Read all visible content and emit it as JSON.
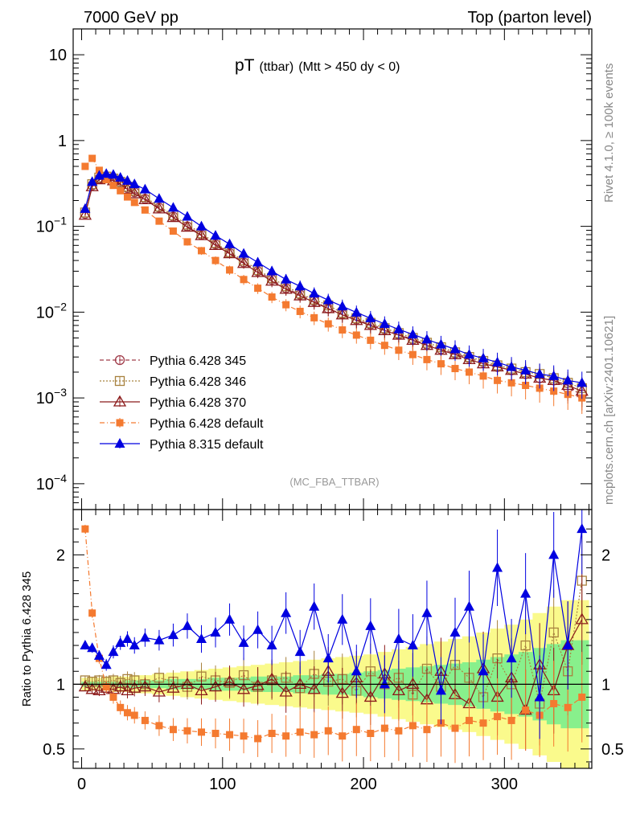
{
  "header": {
    "left": "7000 GeV pp",
    "right": "Top (parton level)"
  },
  "side_labels": {
    "rivet": "Rivet 4.1.0, ≥ 100k events",
    "mcplots": "mcplots.cern.ch [arXiv:2401.10621]"
  },
  "plot_title": {
    "main": "pT",
    "sub1": "(ttbar)",
    "sub2": "(Mtt > 450 dy < 0)"
  },
  "analysis_id": "(MC_FBA_TTBAR)",
  "chart_data": [
    {
      "type": "line",
      "panel": "main",
      "scale": "log",
      "ylim": [
        5e-05,
        20
      ],
      "xlim": [
        -6,
        362
      ],
      "yticks": [
        {
          "value": 10,
          "base": "10",
          "exp": ""
        },
        {
          "value": 1,
          "base": "1",
          "exp": ""
        },
        {
          "value": 0.1,
          "base": "10",
          "exp": "−1"
        },
        {
          "value": 0.01,
          "base": "10",
          "exp": "−2"
        },
        {
          "value": 0.001,
          "base": "10",
          "exp": "−3"
        },
        {
          "value": 0.0001,
          "base": "10",
          "exp": "−4"
        }
      ],
      "x": [
        2.5,
        7.5,
        12.5,
        17.5,
        22.5,
        27.5,
        32.5,
        37.5,
        45,
        55,
        65,
        75,
        85,
        95,
        105,
        115,
        125,
        135,
        145,
        155,
        165,
        175,
        185,
        195,
        205,
        215,
        225,
        235,
        245,
        255,
        265,
        275,
        285,
        295,
        305,
        315,
        325,
        335,
        345,
        355
      ],
      "series": [
        {
          "name": "Pythia 6.428 345",
          "color": "#a13d4b",
          "marker": "open-circle",
          "dash": "5,3",
          "values": [
            0.14,
            0.3,
            0.36,
            0.37,
            0.35,
            0.32,
            0.28,
            0.25,
            0.21,
            0.165,
            0.13,
            0.1,
            0.08,
            0.062,
            0.049,
            0.038,
            0.03,
            0.024,
            0.019,
            0.016,
            0.0135,
            0.011,
            0.0095,
            0.0082,
            0.0072,
            0.0063,
            0.0055,
            0.0048,
            0.0042,
            0.0037,
            0.0033,
            0.0029,
            0.0026,
            0.0023,
            0.0021,
            0.0019,
            0.0017,
            0.0016,
            0.0013,
            0.0011
          ]
        },
        {
          "name": "Pythia 6.428 346",
          "color": "#a8823f",
          "marker": "open-square",
          "dash": "2,2",
          "values": [
            0.145,
            0.31,
            0.37,
            0.38,
            0.36,
            0.33,
            0.29,
            0.26,
            0.22,
            0.17,
            0.135,
            0.105,
            0.083,
            0.064,
            0.05,
            0.04,
            0.031,
            0.025,
            0.02,
            0.0165,
            0.014,
            0.012,
            0.0098,
            0.0085,
            0.0075,
            0.0065,
            0.0057,
            0.005,
            0.0044,
            0.0039,
            0.0034,
            0.003,
            0.0027,
            0.0024,
            0.0022,
            0.002,
            0.0019,
            0.0017,
            0.0015,
            0.0013
          ]
        },
        {
          "name": "Pythia 6.428 370",
          "color": "#8b1a1a",
          "marker": "open-triangle",
          "dash": "",
          "values": [
            0.135,
            0.29,
            0.35,
            0.36,
            0.34,
            0.31,
            0.27,
            0.24,
            0.205,
            0.16,
            0.127,
            0.098,
            0.078,
            0.06,
            0.048,
            0.037,
            0.029,
            0.023,
            0.0185,
            0.0155,
            0.013,
            0.011,
            0.0093,
            0.008,
            0.007,
            0.0061,
            0.0054,
            0.0047,
            0.0041,
            0.0036,
            0.0032,
            0.0028,
            0.0025,
            0.0023,
            0.0021,
            0.0019,
            0.0017,
            0.0016,
            0.0014,
            0.0012
          ]
        },
        {
          "name": "Pythia 6.428 default",
          "color": "#f47a30",
          "marker": "filled-square",
          "dash": "6,3,1,3",
          "values": [
            0.5,
            0.62,
            0.45,
            0.35,
            0.3,
            0.26,
            0.22,
            0.19,
            0.155,
            0.115,
            0.088,
            0.066,
            0.052,
            0.04,
            0.031,
            0.024,
            0.019,
            0.015,
            0.0122,
            0.0102,
            0.0086,
            0.0073,
            0.0062,
            0.0054,
            0.0047,
            0.0041,
            0.0036,
            0.0032,
            0.0028,
            0.0025,
            0.0022,
            0.002,
            0.0018,
            0.0016,
            0.0015,
            0.0014,
            0.0013,
            0.0012,
            0.0011,
            0.001
          ]
        },
        {
          "name": "Pythia 8.315 default",
          "color": "#0000e0",
          "marker": "filled-triangle",
          "dash": "",
          "values": [
            0.16,
            0.33,
            0.39,
            0.41,
            0.4,
            0.37,
            0.34,
            0.31,
            0.27,
            0.21,
            0.165,
            0.13,
            0.1,
            0.078,
            0.062,
            0.048,
            0.038,
            0.03,
            0.024,
            0.02,
            0.0165,
            0.0138,
            0.0117,
            0.0099,
            0.0085,
            0.0073,
            0.0063,
            0.0055,
            0.0048,
            0.0042,
            0.0037,
            0.0032,
            0.0029,
            0.0026,
            0.0023,
            0.0021,
            0.0019,
            0.0018,
            0.0016,
            0.0015
          ]
        }
      ]
    },
    {
      "type": "line",
      "panel": "ratio",
      "ylabel": "Ratio to Pythia 6.428 345",
      "ylim": [
        0.35,
        2.35
      ],
      "yticks": [
        0.5,
        1,
        2
      ],
      "xticks": [
        0,
        100,
        200,
        300
      ],
      "x": [
        2.5,
        7.5,
        12.5,
        17.5,
        22.5,
        27.5,
        32.5,
        37.5,
        45,
        55,
        65,
        75,
        85,
        95,
        105,
        115,
        125,
        135,
        145,
        155,
        165,
        175,
        185,
        195,
        205,
        215,
        225,
        235,
        245,
        255,
        265,
        275,
        285,
        295,
        305,
        315,
        325,
        335,
        345,
        355
      ],
      "band_yellow": [
        0.05,
        0.05,
        0.05,
        0.05,
        0.06,
        0.06,
        0.06,
        0.07,
        0.07,
        0.08,
        0.09,
        0.1,
        0.11,
        0.12,
        0.13,
        0.14,
        0.15,
        0.16,
        0.17,
        0.18,
        0.19,
        0.2,
        0.21,
        0.22,
        0.23,
        0.25,
        0.27,
        0.29,
        0.31,
        0.33,
        0.35,
        0.37,
        0.4,
        0.43,
        0.46,
        0.5,
        0.55,
        0.6,
        0.65,
        0.65
      ],
      "band_green": [
        0.02,
        0.02,
        0.02,
        0.02,
        0.02,
        0.02,
        0.03,
        0.03,
        0.03,
        0.03,
        0.04,
        0.04,
        0.04,
        0.05,
        0.05,
        0.05,
        0.06,
        0.06,
        0.06,
        0.07,
        0.07,
        0.08,
        0.08,
        0.09,
        0.1,
        0.11,
        0.12,
        0.13,
        0.14,
        0.15,
        0.16,
        0.17,
        0.19,
        0.21,
        0.23,
        0.25,
        0.28,
        0.31,
        0.34,
        0.34
      ],
      "series": [
        {
          "name": "Pythia 6.428 346",
          "color": "#a8823f",
          "marker": "open-square",
          "dash": "2,2",
          "values": [
            1.03,
            1.02,
            1.03,
            1.02,
            1.03,
            1.01,
            1.04,
            1.03,
            1.0,
            1.05,
            1.02,
            0.98,
            1.06,
            1.03,
            1.01,
            1.07,
            0.98,
            1.03,
            1.05,
            0.97,
            1.08,
            1.02,
            1.04,
            0.95,
            1.1,
            1.0,
            1.05,
            0.92,
            1.12,
            0.98,
            1.15,
            1.05,
            0.9,
            1.2,
            1.0,
            1.3,
            0.85,
            1.4,
            1.1,
            1.8
          ]
        },
        {
          "name": "Pythia 6.428 370",
          "color": "#8b1a1a",
          "marker": "open-triangle",
          "dash": "",
          "values": [
            0.98,
            0.96,
            0.95,
            0.97,
            0.96,
            0.98,
            0.95,
            0.97,
            0.98,
            0.94,
            0.97,
            1.0,
            0.95,
            0.98,
            1.02,
            0.96,
            0.99,
            1.04,
            0.94,
            1.0,
            0.96,
            1.1,
            0.93,
            1.05,
            0.9,
            1.08,
            0.95,
            1.0,
            0.88,
            1.1,
            0.92,
            0.85,
            1.12,
            0.9,
            1.05,
            0.8,
            1.15,
            0.95,
            1.3,
            1.5
          ]
        },
        {
          "name": "Pythia 6.428 default",
          "color": "#f47a30",
          "marker": "filled-square",
          "dash": "6,3,1,3",
          "values": [
            2.2,
            1.55,
            1.2,
            0.98,
            0.9,
            0.82,
            0.78,
            0.76,
            0.72,
            0.68,
            0.65,
            0.64,
            0.63,
            0.62,
            0.61,
            0.6,
            0.58,
            0.62,
            0.6,
            0.63,
            0.61,
            0.64,
            0.6,
            0.65,
            0.62,
            0.66,
            0.64,
            0.68,
            0.65,
            0.7,
            0.66,
            0.72,
            0.7,
            0.75,
            0.72,
            0.8,
            0.76,
            0.85,
            0.82,
            0.9
          ]
        },
        {
          "name": "Pythia 8.315 default",
          "color": "#0000e0",
          "marker": "filled-triangle",
          "dash": "",
          "values": [
            1.3,
            1.28,
            1.22,
            1.15,
            1.25,
            1.32,
            1.35,
            1.3,
            1.36,
            1.34,
            1.38,
            1.45,
            1.35,
            1.4,
            1.5,
            1.32,
            1.42,
            1.3,
            1.55,
            1.25,
            1.6,
            1.2,
            1.5,
            1.1,
            1.45,
            1.0,
            1.35,
            1.3,
            1.55,
            0.95,
            1.4,
            1.6,
            1.1,
            1.9,
            1.2,
            1.7,
            0.9,
            2.0,
            1.3,
            2.2
          ]
        }
      ]
    }
  ]
}
